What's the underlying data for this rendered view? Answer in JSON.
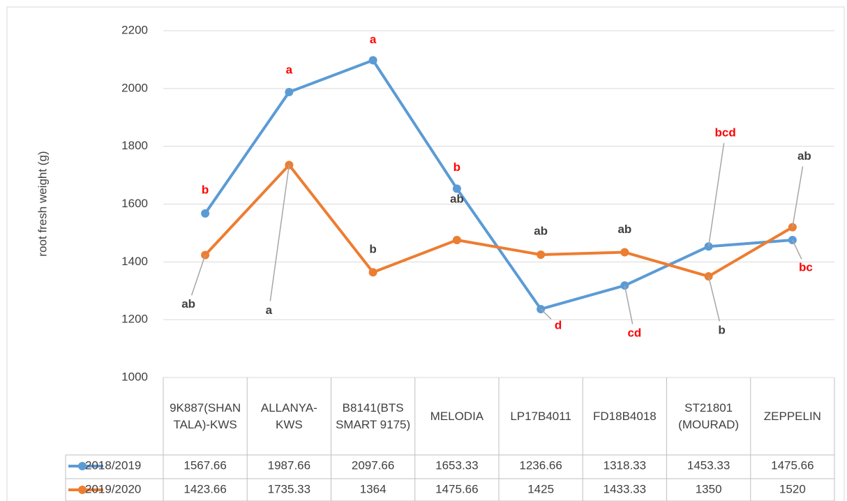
{
  "chart_data": {
    "type": "line",
    "y_label": "root fresh weight (g)",
    "categories": [
      "9K887(SHANTALA)-KWS",
      "ALLANYA-KWS",
      "B8141(BTS SMART 9175)",
      "MELODIA",
      "LP17B4011",
      "FD18B4018",
      "ST21801 (MOURAD)",
      "ZEPPELIN"
    ],
    "series": [
      {
        "name": "2018/2019",
        "color": "#5b9bd5",
        "values": [
          1567.66,
          1987.66,
          2097.66,
          1653.33,
          1236.66,
          1318.33,
          1453.33,
          1475.66
        ],
        "labels": [
          "b",
          "a",
          "a",
          "b",
          "d",
          "cd",
          "bcd",
          "bc"
        ],
        "label_color": "#ff0000"
      },
      {
        "name": "2019/2020",
        "color": "#ed7d31",
        "values": [
          1423.66,
          1735.33,
          1364,
          1475.66,
          1425,
          1433.33,
          1350,
          1520
        ],
        "labels": [
          "ab",
          "a",
          "b",
          "ab",
          "ab",
          "ab",
          "b",
          "ab"
        ],
        "label_color": "#404040"
      }
    ],
    "ylim": [
      1000,
      2200
    ],
    "yticks": [
      1000,
      1200,
      1400,
      1600,
      1800,
      2000,
      2200
    ],
    "grid": true,
    "data_table": true
  }
}
